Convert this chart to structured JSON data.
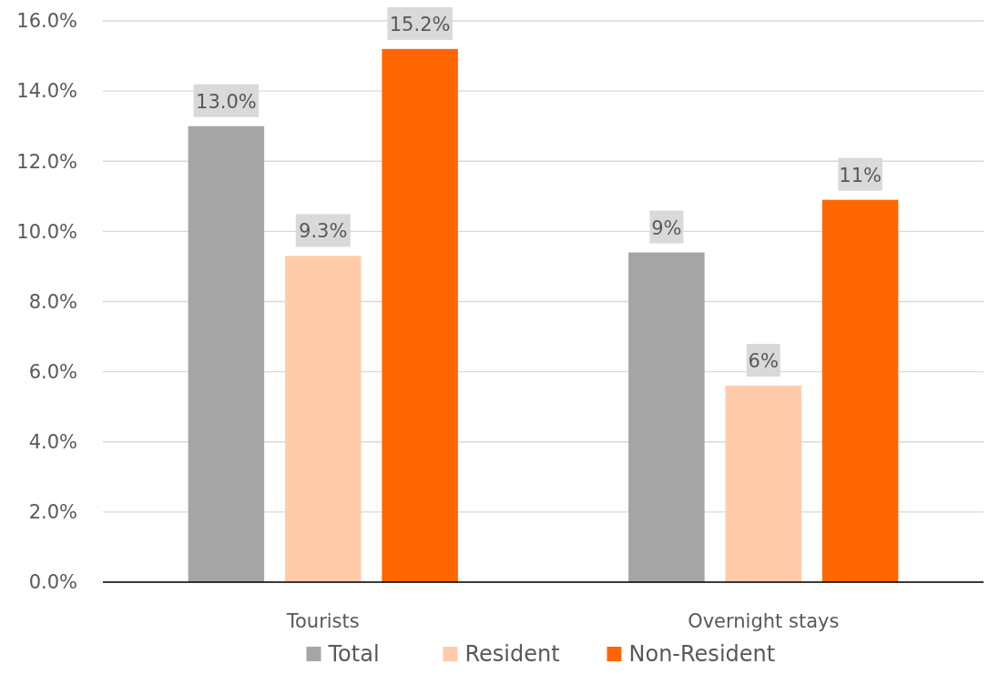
{
  "chart_data": {
    "type": "bar",
    "categories": [
      "Tourists",
      "Overnight stays"
    ],
    "series": [
      {
        "name": "Total",
        "color": "#a5a5a5",
        "values": [
          13.0,
          9.4
        ],
        "value_labels": [
          "13.0%",
          "9%"
        ]
      },
      {
        "name": "Resident",
        "color": "#ffcba9",
        "values": [
          9.3,
          5.6
        ],
        "value_labels": [
          "9.3%",
          "6%"
        ]
      },
      {
        "name": "Non-Resident",
        "color": "#ff6600",
        "values": [
          15.2,
          10.9
        ],
        "value_labels": [
          "15.2%",
          "11%"
        ]
      }
    ],
    "ylim": [
      0,
      16
    ],
    "yticks": [
      {
        "value": 0,
        "label": "0.0%"
      },
      {
        "value": 2,
        "label": "2.0%"
      },
      {
        "value": 4,
        "label": "4.0%"
      },
      {
        "value": 6,
        "label": "6.0%"
      },
      {
        "value": 8,
        "label": "8.0%"
      },
      {
        "value": 10,
        "label": "10.0%"
      },
      {
        "value": 12,
        "label": "12.0%"
      },
      {
        "value": 14,
        "label": "14.0%"
      },
      {
        "value": 16,
        "label": "16.0%"
      }
    ],
    "grid": "y",
    "legend": "bottom"
  }
}
